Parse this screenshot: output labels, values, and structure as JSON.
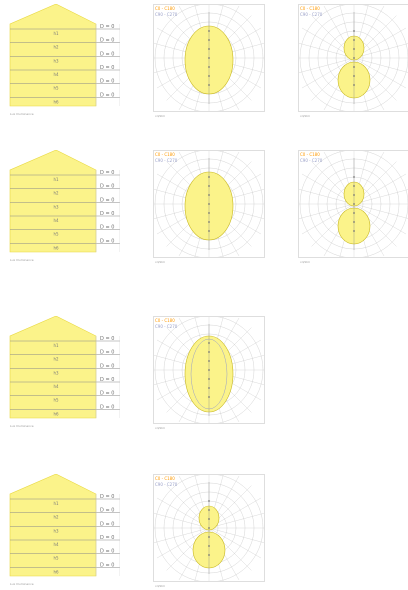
{
  "legend": {
    "c0_c180": "C0 - C180",
    "c90_c270": "C90 - C270"
  },
  "rows": [
    {
      "cone": {
        "row_labels": [
          "h1",
          "h2",
          "h3",
          "h4",
          "h5",
          "h6"
        ],
        "right_labels": [
          "D = 0",
          "D = 0",
          "D = 0",
          "D = 0",
          "D = 0",
          "D = 0"
        ],
        "caption": "Lux    Illuminance"
      },
      "polars": [
        {
          "shape": "ellipse",
          "caption": "cd/klm"
        },
        {
          "shape": "double",
          "caption": "cd/klm"
        }
      ]
    },
    {
      "cone": {
        "row_labels": [
          "h1",
          "h2",
          "h3",
          "h4",
          "h5",
          "h6"
        ],
        "right_labels": [
          "D = 0",
          "D = 0",
          "D = 0",
          "D = 0",
          "D = 0",
          "D = 0"
        ],
        "caption": "Lux    Illuminance"
      },
      "polars": [
        {
          "shape": "ellipse",
          "caption": "cd/klm"
        },
        {
          "shape": "double",
          "caption": "cd/klm"
        }
      ]
    },
    {
      "cone": {
        "row_labels": [
          "h1",
          "h2",
          "h3",
          "h4",
          "h5",
          "h6"
        ],
        "right_labels": [
          "D = 0",
          "D = 0",
          "D = 0",
          "D = 0",
          "D = 0",
          "D = 0"
        ],
        "caption": "Lux    Illuminance"
      },
      "polars": [
        {
          "shape": "ellipse-tall",
          "caption": "cd/klm"
        }
      ]
    },
    {
      "cone": {
        "row_labels": [
          "h1",
          "h2",
          "h3",
          "h4",
          "h5",
          "h6"
        ],
        "right_labels": [
          "D = 0",
          "D = 0",
          "D = 0",
          "D = 0",
          "D = 0",
          "D = 0"
        ],
        "caption": "Lux    Illuminance"
      },
      "polars": [
        {
          "shape": "double",
          "caption": "cd/klm"
        }
      ]
    }
  ],
  "colors": {
    "cone_fill": "#fbf38a",
    "cone_edge": "#e8d840",
    "polar_fill": "#fbf38a",
    "polar_edge": "#c8b820",
    "grid": "#c9c9c9",
    "grid_dark": "#8a8a8a",
    "c0_curve": "#ff9900",
    "c90_curve": "#9aa0c8"
  }
}
